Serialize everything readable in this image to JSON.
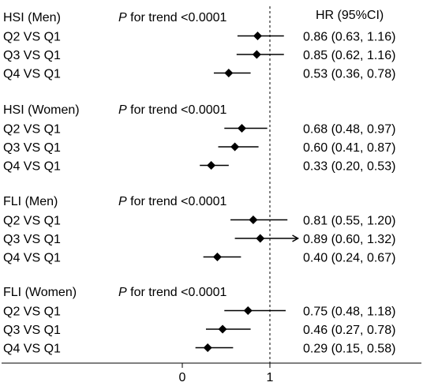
{
  "chart_data": {
    "type": "forest",
    "hr_header": "HR (95%CI)",
    "x_axis": {
      "ticks": [
        0,
        1
      ],
      "reference_line": 1,
      "reference_style": "dashed"
    },
    "groups": [
      {
        "label": "HSI (Men)",
        "trend_p": "P",
        "trend_text": " for trend <0.0001",
        "rows": [
          {
            "label": "Q2 VS Q1",
            "hr": 0.86,
            "lower": 0.63,
            "upper": 1.16,
            "text": "0.86 (0.63, 1.16)"
          },
          {
            "label": "Q3 VS Q1",
            "hr": 0.85,
            "lower": 0.62,
            "upper": 1.16,
            "text": "0.85 (0.62, 1.16)"
          },
          {
            "label": "Q4 VS Q1",
            "hr": 0.53,
            "lower": 0.36,
            "upper": 0.78,
            "text": "0.53 (0.36, 0.78)"
          }
        ]
      },
      {
        "label": "HSI (Women)",
        "trend_p": "P",
        "trend_text": " for trend <0.0001",
        "rows": [
          {
            "label": "Q2 VS Q1",
            "hr": 0.68,
            "lower": 0.48,
            "upper": 0.97,
            "text": "0.68 (0.48, 0.97)"
          },
          {
            "label": "Q3 VS Q1",
            "hr": 0.6,
            "lower": 0.41,
            "upper": 0.87,
            "text": "0.60 (0.41, 0.87)"
          },
          {
            "label": "Q4 VS Q1",
            "hr": 0.33,
            "lower": 0.2,
            "upper": 0.53,
            "text": "0.33 (0.20, 0.53)"
          }
        ]
      },
      {
        "label": "FLI (Men)",
        "trend_p": "P",
        "trend_text": " for trend <0.0001",
        "rows": [
          {
            "label": "Q2 VS Q1",
            "hr": 0.81,
            "lower": 0.55,
            "upper": 1.2,
            "text": "0.81 (0.55, 1.20)"
          },
          {
            "label": "Q3 VS Q1",
            "hr": 0.89,
            "lower": 0.6,
            "upper": 1.32,
            "text": "0.89 (0.60, 1.32)",
            "arrow": true
          },
          {
            "label": "Q4 VS Q1",
            "hr": 0.4,
            "lower": 0.24,
            "upper": 0.67,
            "text": "0.40 (0.24, 0.67)"
          }
        ]
      },
      {
        "label": "FLI (Women)",
        "trend_p": "P",
        "trend_text": " for trend <0.0001",
        "rows": [
          {
            "label": "Q2 VS Q1",
            "hr": 0.75,
            "lower": 0.48,
            "upper": 1.18,
            "text": "0.75 (0.48, 1.18)"
          },
          {
            "label": "Q3 VS Q1",
            "hr": 0.46,
            "lower": 0.27,
            "upper": 0.78,
            "text": "0.46 (0.27, 0.78)"
          },
          {
            "label": "Q4 VS Q1",
            "hr": 0.29,
            "lower": 0.15,
            "upper": 0.58,
            "text": "0.29 (0.15, 0.58)"
          }
        ]
      }
    ]
  }
}
